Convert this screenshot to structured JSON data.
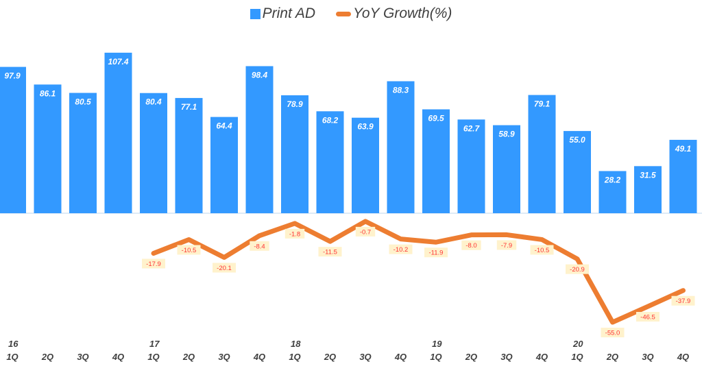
{
  "chart_data": {
    "type": "bar+line",
    "legend": {
      "placement": "top",
      "entries": [
        "Print AD",
        "YoY Growth(%)"
      ]
    },
    "categories": [
      "1Q",
      "2Q",
      "3Q",
      "4Q",
      "1Q",
      "2Q",
      "3Q",
      "4Q",
      "1Q",
      "2Q",
      "3Q",
      "4Q",
      "1Q",
      "2Q",
      "3Q",
      "4Q",
      "1Q",
      "2Q",
      "3Q",
      "4Q"
    ],
    "years": [
      "16",
      "",
      "",
      "",
      "17",
      "",
      "",
      "",
      "18",
      "",
      "",
      "",
      "19",
      "",
      "",
      "",
      "20",
      "",
      "",
      ""
    ],
    "series": [
      {
        "name": "Print AD",
        "type": "bar",
        "color": "#3399ff",
        "values": [
          97.9,
          86.1,
          80.5,
          107.4,
          80.4,
          77.1,
          64.4,
          98.4,
          78.9,
          68.2,
          63.9,
          88.3,
          69.5,
          62.7,
          58.9,
          79.1,
          55.0,
          28.2,
          31.5,
          49.1
        ]
      },
      {
        "name": "YoY Growth(%)",
        "type": "line",
        "color": "#ed7d31",
        "values": [
          null,
          null,
          null,
          null,
          -17.9,
          -10.5,
          -20.1,
          -8.4,
          -1.8,
          -11.5,
          -0.7,
          -10.2,
          -11.9,
          -8.0,
          -7.9,
          -10.5,
          -20.9,
          -55.0,
          -46.5,
          -37.9
        ]
      }
    ],
    "grid": false
  }
}
